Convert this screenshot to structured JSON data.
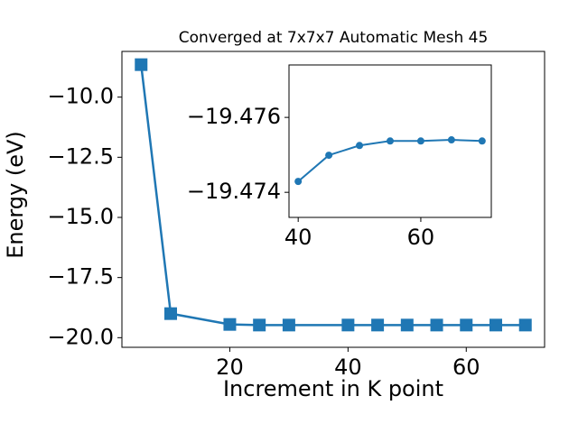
{
  "chart_data": [
    {
      "type": "line",
      "title": "Converged at 7x7x7 Automatic Mesh 45",
      "xlabel": "Increment in K point",
      "ylabel": "Energy (eV)",
      "x": [
        5,
        10,
        20,
        25,
        30,
        40,
        45,
        50,
        55,
        60,
        65,
        70
      ],
      "series": [
        {
          "color": "#1f77b4",
          "marker": "square",
          "values": [
            -8.65,
            -19.0,
            -19.45,
            -19.4752,
            -19.4754,
            -19.47429,
            -19.47499,
            -19.47525,
            -19.47537,
            -19.47537,
            -19.4754,
            -19.47537
          ]
        }
      ],
      "xlim": [
        1.75,
        73.25
      ],
      "ylim": [
        -20.4,
        -8.1
      ],
      "xticks": [
        20,
        40,
        60
      ],
      "yticks": [
        {
          "value": -10.0,
          "label": "−10.0"
        },
        {
          "value": -12.5,
          "label": "−12.5"
        },
        {
          "value": -15.0,
          "label": "−15.0"
        },
        {
          "value": -17.5,
          "label": "−17.5"
        },
        {
          "value": -20.0,
          "label": "−20.0"
        }
      ]
    },
    {
      "type": "line",
      "x": [
        40,
        45,
        50,
        55,
        60,
        65,
        70
      ],
      "series": [
        {
          "color": "#1f77b4",
          "marker": "circle",
          "values": [
            -19.47429,
            -19.47499,
            -19.47525,
            -19.47537,
            -19.47537,
            -19.4754,
            -19.47537
          ]
        }
      ],
      "xlim": [
        38.5,
        71.5
      ],
      "ylim": [
        -19.47333,
        -19.4774
      ],
      "xticks": [
        40,
        60
      ],
      "yticks": [
        {
          "value": -19.476,
          "label": "−19.476"
        },
        {
          "value": -19.474,
          "label": "−19.474"
        }
      ]
    }
  ]
}
